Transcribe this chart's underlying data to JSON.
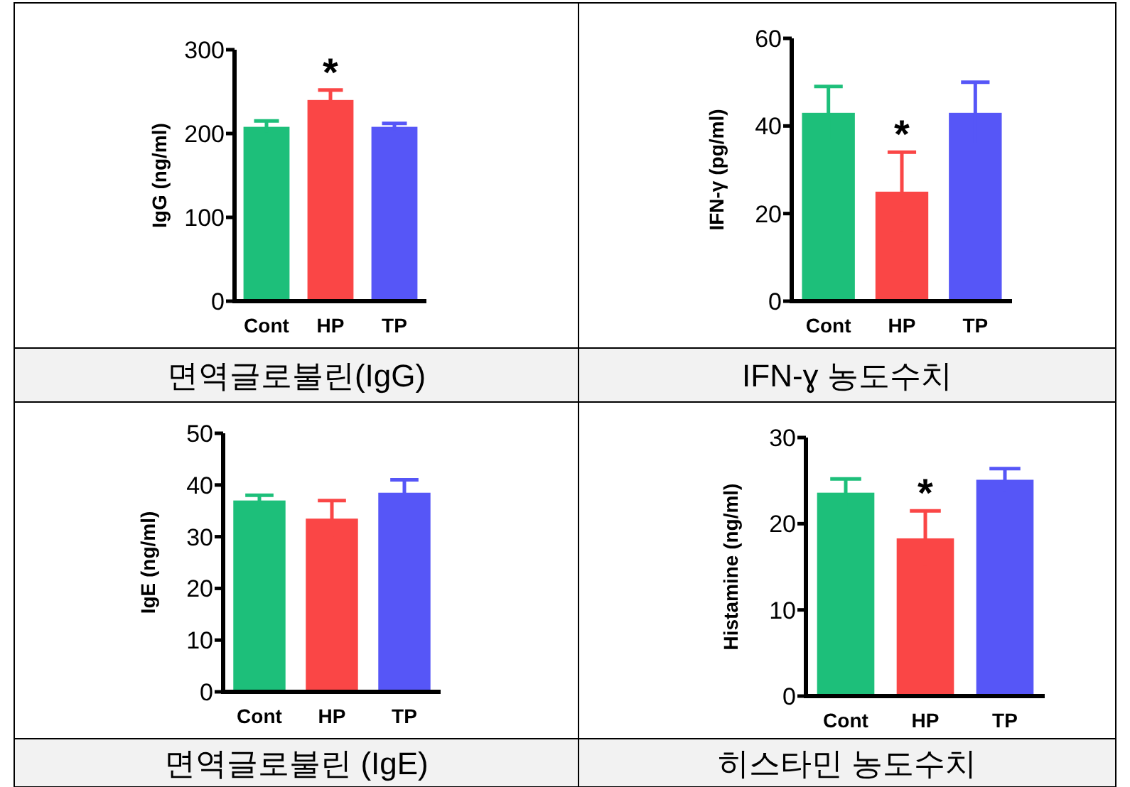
{
  "chart_data": [
    {
      "type": "bar",
      "categories": [
        "Cont",
        "HP",
        "TP"
      ],
      "values": [
        208,
        240,
        208
      ],
      "errors": [
        7,
        12,
        4
      ],
      "colors": [
        "#1dbf7a",
        "#fa4646",
        "#5656f7"
      ],
      "ylabel": "IgG (ng/ml)",
      "ylim": [
        0,
        300
      ],
      "yticks": [
        0,
        100,
        200,
        300
      ],
      "annotations": [
        "면역글로불린(IgG)",
        {
          "text": "*",
          "x": "HP",
          "y": 252
        }
      ]
    },
    {
      "type": "bar",
      "categories": [
        "Cont",
        "HP",
        "TP"
      ],
      "values": [
        43,
        25,
        43
      ],
      "errors": [
        6,
        9,
        7
      ],
      "colors": [
        "#1dbf7a",
        "#fa4646",
        "#5656f7"
      ],
      "ylabel": "IFN-γ (pg/ml)",
      "ylim": [
        0,
        60
      ],
      "yticks": [
        0,
        20,
        40,
        60
      ],
      "annotations": [
        "IFN-ɣ 농도수치",
        {
          "text": "*",
          "x": "HP",
          "y": 34
        }
      ]
    },
    {
      "type": "bar",
      "categories": [
        "Cont",
        "HP",
        "TP"
      ],
      "values": [
        37,
        33.5,
        38.5
      ],
      "errors": [
        1,
        3.5,
        2.5
      ],
      "colors": [
        "#1dbf7a",
        "#fa4646",
        "#5656f7"
      ],
      "ylabel": "IgE (ng/ml)",
      "ylim": [
        0,
        50
      ],
      "yticks": [
        0,
        10,
        20,
        30,
        40,
        50
      ],
      "annotations": [
        "면역글로불린 (IgE)"
      ]
    },
    {
      "type": "bar",
      "categories": [
        "Cont",
        "HP",
        "TP"
      ],
      "values": [
        23.6,
        18.3,
        25.1
      ],
      "errors": [
        1.6,
        3.2,
        1.3
      ],
      "colors": [
        "#1dbf7a",
        "#fa4646",
        "#5656f7"
      ],
      "ylabel": "Histamine (ng/ml)",
      "ylim": [
        0,
        30
      ],
      "yticks": [
        0,
        10,
        20,
        30
      ],
      "annotations": [
        "히스타민 농도수치",
        {
          "text": "*",
          "x": "HP",
          "y": 21.5
        }
      ]
    }
  ]
}
